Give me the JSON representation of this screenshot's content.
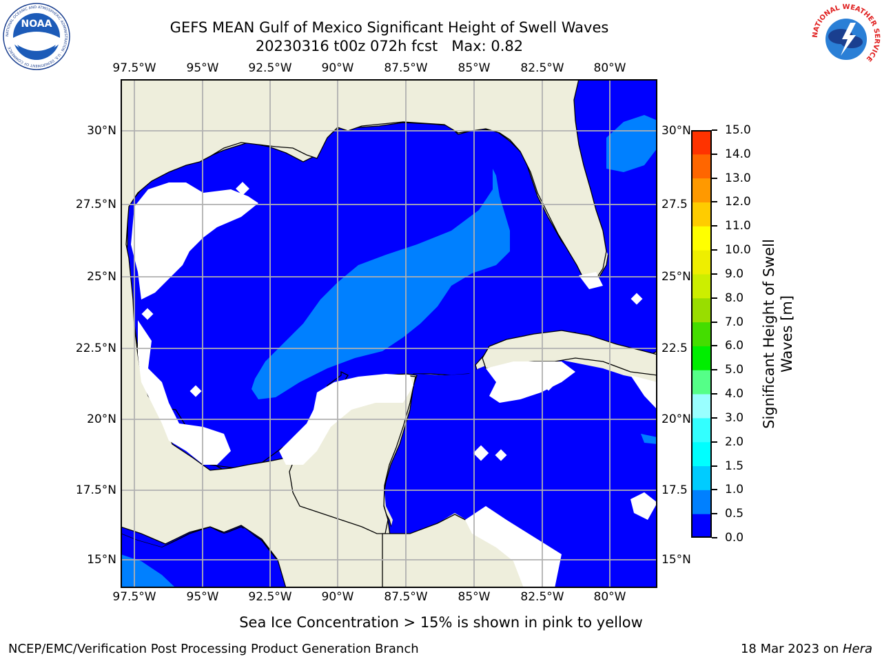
{
  "title_line1": "GEFS MEAN Gulf of Mexico Significant Height of Swell Waves",
  "title_line2": "20230316 t00z 072h fcst   Max: 0.82",
  "lon_ticks": [
    "97.5°W",
    "95°W",
    "92.5°W",
    "90°W",
    "87.5°W",
    "85°W",
    "82.5°W",
    "80°W"
  ],
  "lat_ticks_left": [
    "30°N",
    "27.5°N",
    "25°N",
    "22.5°N",
    "20°N",
    "17.5°N",
    "15°N"
  ],
  "lat_ticks_right": [
    "30°N",
    "27.5",
    "25°N",
    "22.5",
    "20°N",
    "17.5",
    "15°N"
  ],
  "colorbar": {
    "label_line1": "Significant Height of Swell",
    "label_line2": "Waves [m]",
    "ticks": [
      "0.0",
      "0.5",
      "1.0",
      "1.5",
      "2.0",
      "3.0",
      "4.0",
      "5.0",
      "6.0",
      "7.0",
      "8.0",
      "9.0",
      "10.0",
      "11.0",
      "12.0",
      "13.0",
      "14.0",
      "15.0"
    ],
    "colors": [
      "#0000ff",
      "#0080ff",
      "#00ccff",
      "#00ffff",
      "#33ffff",
      "#99ffff",
      "#55ff88",
      "#00ee00",
      "#44dd00",
      "#99dd00",
      "#ccee00",
      "#eeee00",
      "#ffff00",
      "#ffcc00",
      "#ff9900",
      "#ff6600",
      "#ff3300",
      "#ff0000"
    ]
  },
  "colors": {
    "land": "#eeeedc",
    "ocean_low": "#0000ff",
    "ocean_mid": "#0080ff",
    "no_data": "#ffffff",
    "grid": "#b0b0b0",
    "coast": "#000000"
  },
  "footer_note": "Sea Ice Concentration > 15% is shown in pink to yellow",
  "credit_left": "NCEP/EMC/Verification Post Processing Product Generation Branch",
  "credit_right_text": "18 Mar 2023 on ",
  "credit_right_host": "Hera",
  "logos": {
    "noaa_text": "NOAA",
    "noaa_ring": "NATIONAL OCEANIC AND ATMOSPHERIC ADMINISTRATION · U.S. DEPARTMENT OF COMMERCE",
    "nws_ring": "NATIONAL WEATHER SERVICE"
  }
}
